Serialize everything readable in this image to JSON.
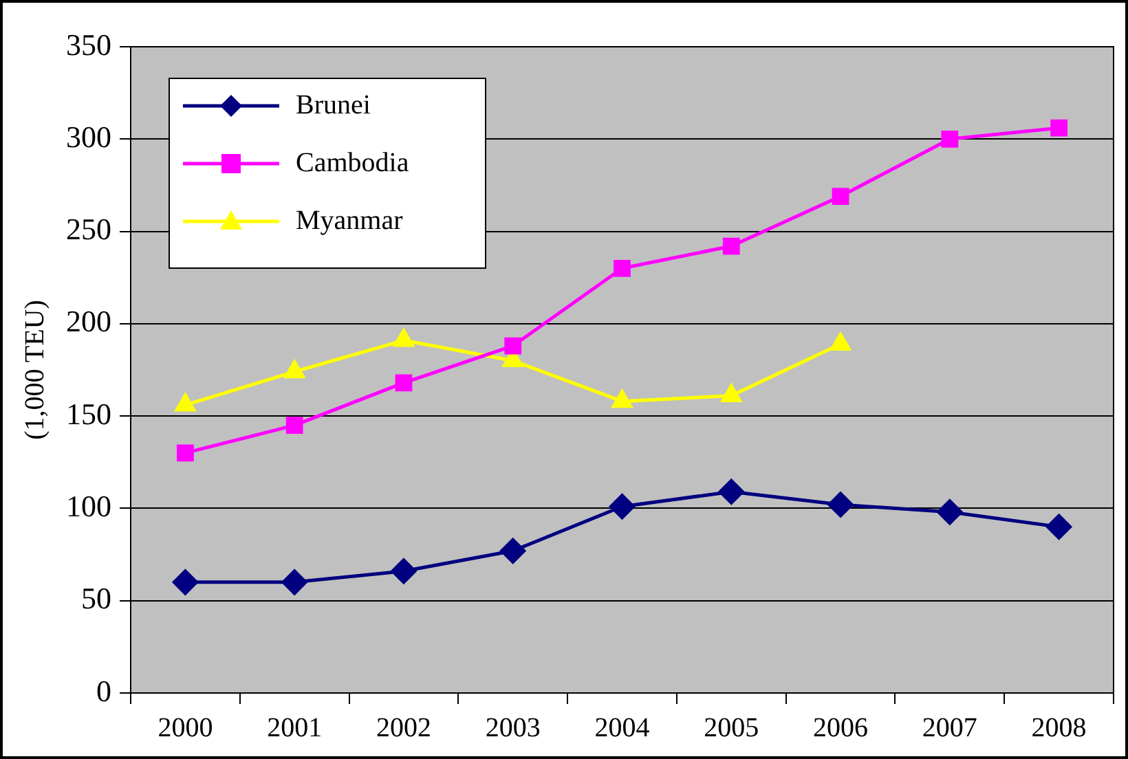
{
  "chart_data": {
    "type": "line",
    "ylabel": "(1,000 TEU)",
    "categories": [
      "2000",
      "2001",
      "2002",
      "2003",
      "2004",
      "2005",
      "2006",
      "2007",
      "2008"
    ],
    "series": [
      {
        "name": "Brunei",
        "color": "#000080",
        "marker": "diamond",
        "values": [
          60,
          60,
          66,
          77,
          101,
          109,
          102,
          98,
          90
        ]
      },
      {
        "name": "Cambodia",
        "color": "#ff00ff",
        "marker": "square",
        "values": [
          130,
          145,
          168,
          188,
          230,
          242,
          269,
          300,
          306
        ]
      },
      {
        "name": "Myanmar",
        "color": "#ffff00",
        "marker": "triangle",
        "values": [
          156,
          174,
          191,
          180,
          158,
          161,
          189,
          null,
          null
        ]
      }
    ],
    "ylim": [
      0,
      350
    ],
    "yticks": [
      0,
      50,
      100,
      150,
      200,
      250,
      300,
      350
    ],
    "grid": "y",
    "legend": "top left"
  }
}
